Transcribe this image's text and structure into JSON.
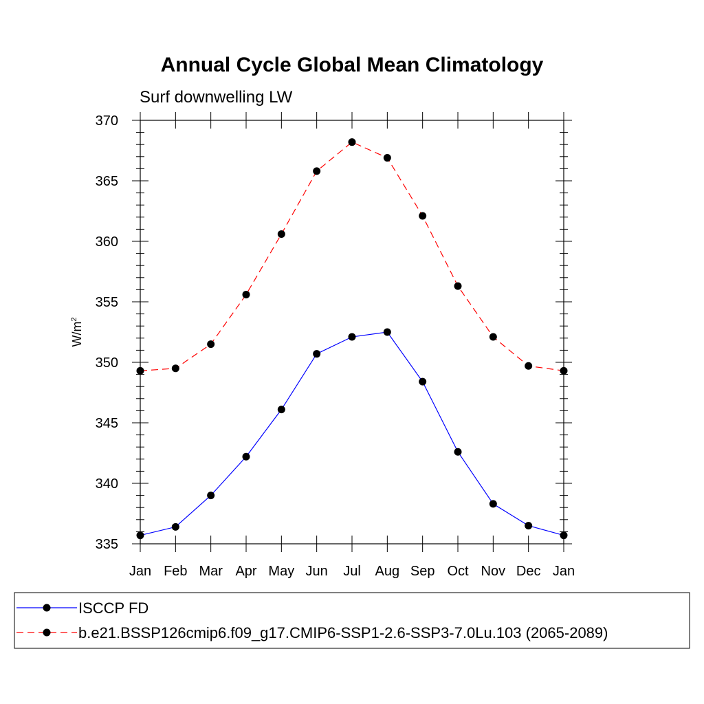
{
  "chart_data": {
    "type": "line",
    "title": "Annual Cycle Global Mean Climatology",
    "subtitle": "Surf downwelling LW",
    "xlabel": "",
    "ylabel": "W/m",
    "ylabel_superscript": "2",
    "categories": [
      "Jan",
      "Feb",
      "Mar",
      "Apr",
      "May",
      "Jun",
      "Jul",
      "Aug",
      "Sep",
      "Oct",
      "Nov",
      "Dec",
      "Jan"
    ],
    "ylim": [
      335,
      370
    ],
    "yticks": [
      "335",
      "340",
      "345",
      "350",
      "355",
      "360",
      "365",
      "370"
    ],
    "grid": false,
    "legend_position": "bottom",
    "series": [
      {
        "name": "ISCCP FD",
        "color": "#0000ff",
        "line_style": "solid",
        "marker": "filled-circle",
        "values": [
          335.7,
          336.4,
          339.0,
          342.2,
          346.1,
          350.7,
          352.1,
          352.5,
          348.4,
          342.6,
          338.3,
          336.5,
          335.7
        ]
      },
      {
        "name": "b.e21.BSSP126cmip6.f09_g17.CMIP6-SSP1-2.6-SSP3-7.0Lu.103 (2065-2089)",
        "color": "#ff0000",
        "line_style": "dashed",
        "marker": "filled-circle",
        "values": [
          349.3,
          349.5,
          351.5,
          355.6,
          360.6,
          365.8,
          368.2,
          366.9,
          362.1,
          356.3,
          352.1,
          349.7,
          349.3
        ]
      }
    ]
  }
}
